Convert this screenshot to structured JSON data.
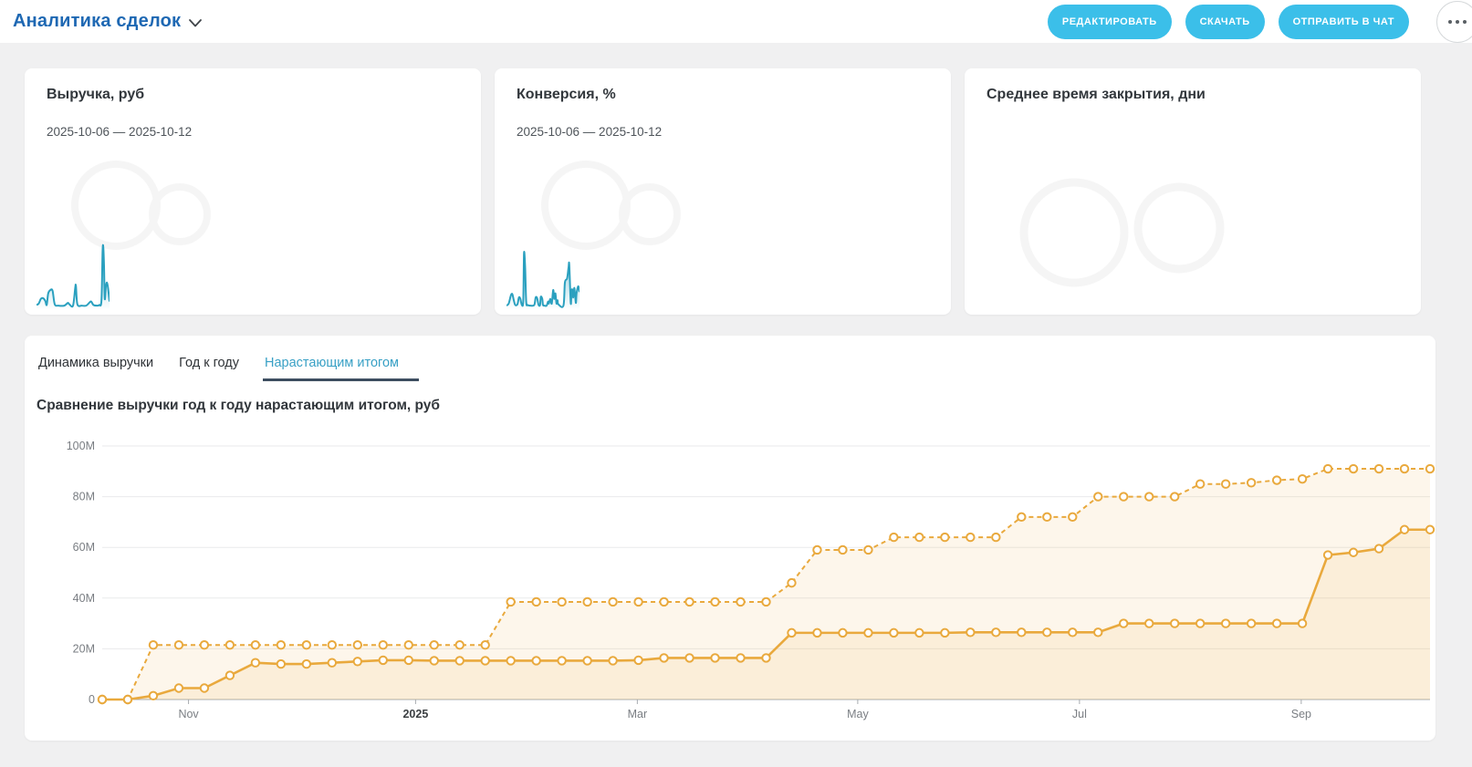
{
  "header": {
    "title": "Аналитика сделок",
    "buttons": {
      "edit": "РЕДАКТИРОВАТЬ",
      "download": "СКАЧАТЬ",
      "send_to_chat": "ОТПРАВИТЬ В ЧАТ"
    }
  },
  "cards": [
    {
      "title": "Выручка, руб",
      "date_range": "2025-10-06 — 2025-10-12"
    },
    {
      "title": "Конверсия, %",
      "date_range": "2025-10-06 — 2025-10-12"
    },
    {
      "title": "Среднее время закрытия, дни",
      "date_range": ""
    }
  ],
  "tabs": [
    {
      "label": "Динамика выручки",
      "active": false
    },
    {
      "label": "Год к году",
      "active": false
    },
    {
      "label": "Нарастающим итогом",
      "active": true
    }
  ],
  "chart": {
    "title": "Сравнение выручки год к году нарастающим итогом, руб"
  },
  "chart_data": [
    {
      "id": "yoy-cumulative",
      "type": "line",
      "title": "Сравнение выручки год к году нарастающим итогом, руб",
      "ylabel": "руб",
      "ylim_M": [
        0,
        100
      ],
      "grid": true,
      "legend": "none",
      "y_ticks": [
        {
          "value_M": 0,
          "label": "0"
        },
        {
          "value_M": 20,
          "label": "20M"
        },
        {
          "value_M": 40,
          "label": "40M"
        },
        {
          "value_M": 60,
          "label": "60M"
        },
        {
          "value_M": 80,
          "label": "80M"
        },
        {
          "value_M": 100,
          "label": "100M"
        }
      ],
      "x_ticks": [
        {
          "label": "Nov",
          "pos": 0.065,
          "emphasis": false
        },
        {
          "label": "2025",
          "pos": 0.236,
          "emphasis": true
        },
        {
          "label": "Mar",
          "pos": 0.403,
          "emphasis": false
        },
        {
          "label": "May",
          "pos": 0.569,
          "emphasis": false
        },
        {
          "label": "Jul",
          "pos": 0.736,
          "emphasis": false
        },
        {
          "label": "Sep",
          "pos": 0.903,
          "emphasis": false
        }
      ],
      "series": [
        {
          "name": "upper-line-dashed",
          "style": "dashed",
          "marker": "circle",
          "values_M": [
            0,
            0,
            21.5,
            21.5,
            21.5,
            21.5,
            21.5,
            21.5,
            21.5,
            21.5,
            21.5,
            21.5,
            21.5,
            21.5,
            21.5,
            21.5,
            38.5,
            38.5,
            38.5,
            38.5,
            38.5,
            38.5,
            38.5,
            38.5,
            38.5,
            38.5,
            38.5,
            46,
            59,
            59,
            59,
            64,
            64,
            64,
            64,
            64,
            72,
            72,
            72,
            80,
            80,
            80,
            80,
            85,
            85,
            85.5,
            86.5,
            87,
            91,
            91,
            91,
            91,
            91
          ]
        },
        {
          "name": "lower-line-solid",
          "style": "solid",
          "marker": "circle",
          "values_M": [
            0,
            0,
            1.5,
            4.5,
            4.5,
            9.5,
            14.5,
            14,
            14,
            14.5,
            15,
            15.5,
            15.5,
            15.3,
            15.3,
            15.3,
            15.3,
            15.3,
            15.3,
            15.3,
            15.3,
            15.5,
            16.4,
            16.4,
            16.4,
            16.4,
            16.4,
            26.3,
            26.3,
            26.3,
            26.3,
            26.3,
            26.3,
            26.3,
            26.5,
            26.5,
            26.5,
            26.5,
            26.5,
            26.5,
            30,
            30,
            30,
            30,
            30,
            30,
            30,
            30,
            57,
            58,
            59.5,
            67,
            67
          ]
        }
      ]
    },
    {
      "id": "revenue-sparkline",
      "type": "area",
      "note": "points are [x_percent, height_percent_above_baseline]",
      "points": [
        [
          0,
          3
        ],
        [
          3,
          5
        ],
        [
          6,
          12
        ],
        [
          9,
          13
        ],
        [
          12,
          9
        ],
        [
          14,
          3
        ],
        [
          16,
          20
        ],
        [
          19,
          25
        ],
        [
          22,
          24
        ],
        [
          25,
          4
        ],
        [
          30,
          2
        ],
        [
          38,
          2
        ],
        [
          43,
          6
        ],
        [
          45,
          4
        ],
        [
          50,
          2
        ],
        [
          53,
          28
        ],
        [
          54,
          31
        ],
        [
          56,
          4
        ],
        [
          62,
          2
        ],
        [
          68,
          2
        ],
        [
          73,
          7
        ],
        [
          75,
          8
        ],
        [
          78,
          3
        ],
        [
          83,
          2
        ],
        [
          86,
          3
        ],
        [
          89,
          10
        ],
        [
          90.5,
          82
        ],
        [
          91.5,
          88
        ],
        [
          92.5,
          60
        ],
        [
          93.5,
          12
        ],
        [
          95,
          30
        ],
        [
          96.5,
          36
        ],
        [
          98,
          28
        ],
        [
          100,
          8
        ]
      ]
    },
    {
      "id": "conversion-sparkline",
      "type": "area",
      "note": "points are [x_percent, height_percent_above_baseline]",
      "points": [
        [
          0,
          2
        ],
        [
          3,
          5
        ],
        [
          6,
          17
        ],
        [
          8,
          19
        ],
        [
          10,
          10
        ],
        [
          12,
          3
        ],
        [
          15,
          4
        ],
        [
          17,
          14
        ],
        [
          19,
          12
        ],
        [
          21,
          3
        ],
        [
          23,
          10
        ],
        [
          24,
          79
        ],
        [
          25.5,
          60
        ],
        [
          27,
          8
        ],
        [
          29,
          3
        ],
        [
          33,
          2
        ],
        [
          38,
          3
        ],
        [
          40,
          14
        ],
        [
          42,
          13
        ],
        [
          44,
          3
        ],
        [
          46,
          3
        ],
        [
          47,
          15
        ],
        [
          49,
          12
        ],
        [
          50,
          3
        ],
        [
          52,
          2
        ],
        [
          55,
          2
        ],
        [
          57,
          8
        ],
        [
          58,
          5
        ],
        [
          60,
          12
        ],
        [
          62,
          5
        ],
        [
          64,
          25
        ],
        [
          65.5,
          12
        ],
        [
          67,
          20
        ],
        [
          68.5,
          5
        ],
        [
          70,
          10
        ],
        [
          71,
          4
        ],
        [
          78,
          2
        ],
        [
          80,
          36
        ],
        [
          83,
          42
        ],
        [
          85,
          58
        ],
        [
          86,
          62
        ],
        [
          88,
          6
        ],
        [
          89,
          20
        ],
        [
          90,
          26
        ],
        [
          91.5,
          14
        ],
        [
          93,
          28
        ],
        [
          95,
          6
        ],
        [
          96,
          20
        ],
        [
          98,
          30
        ],
        [
          99,
          28
        ],
        [
          100,
          22
        ]
      ]
    }
  ],
  "colors": {
    "title_blue": "#1e68b3",
    "button_cyan": "#3bbfe9",
    "sparkline_teal": "#2aa0bf",
    "line_amber": "#e9a93d",
    "area_amber": "rgba(239,183,87,0.12)",
    "tab_active": "#38a0c5",
    "tab_underline": "#3d4e60",
    "gridline": "#e9eaeb",
    "axis": "#a7abaf",
    "tick_label": "#7a7e83"
  }
}
